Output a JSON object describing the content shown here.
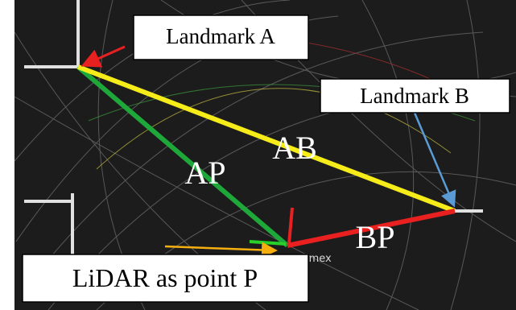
{
  "landmark_a": {
    "label": "Landmark A"
  },
  "landmark_b": {
    "label": "Landmark B"
  },
  "lidar": {
    "label": "LiDAR as point P"
  },
  "segments": {
    "ab": "AB",
    "ap": "AP",
    "bp": "BP"
  },
  "watermark": "imex"
}
